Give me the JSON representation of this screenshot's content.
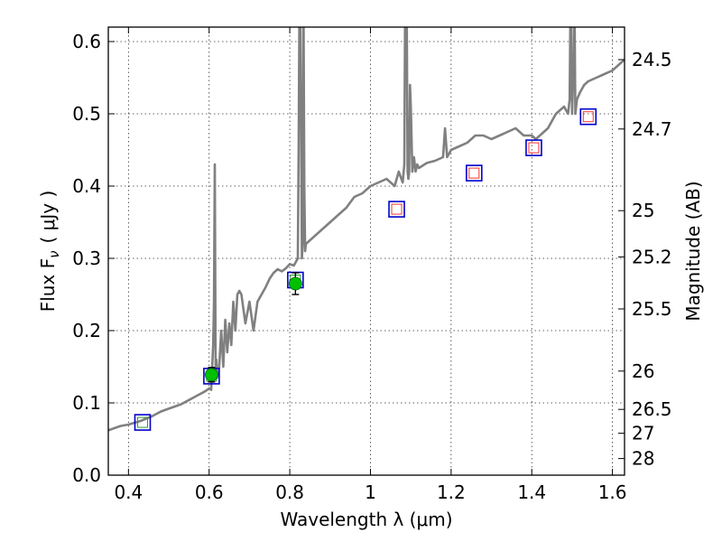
{
  "chart_data": {
    "type": "line",
    "xlabel": "Wavelength  λ (μm)",
    "ylabel": "Flux  F",
    "ylabel_sub": "ν",
    "ylabel_unit": "( μJy )",
    "y2label": "Magnitude (AB)",
    "xlim": [
      0.35,
      1.63
    ],
    "ylim": [
      0.0,
      0.62
    ],
    "grid": true,
    "x_ticks": [
      0.4,
      0.6,
      0.8,
      1.0,
      1.2,
      1.4,
      1.6
    ],
    "x_tick_labels": [
      "0.4",
      "0.6",
      "0.8",
      "1",
      "1.2",
      "1.4",
      "1.6"
    ],
    "y_ticks": [
      0.0,
      0.1,
      0.2,
      0.3,
      0.4,
      0.5,
      0.6
    ],
    "y_tick_labels": [
      "0.0",
      "0.1",
      "0.2",
      "0.3",
      "0.4",
      "0.5",
      "0.6"
    ],
    "mag_ticks": [
      24.5,
      24.7,
      25,
      25.2,
      25.5,
      26,
      26.5,
      27,
      28
    ],
    "mag_tick_labels": [
      "24.5",
      "24.7",
      "25",
      "25.2",
      "25.5",
      "26",
      "26.5",
      "27",
      "28"
    ],
    "mag_tick_flux": [
      0.575,
      0.479,
      0.366,
      0.302,
      0.23,
      0.144,
      0.091,
      0.058,
      0.023
    ],
    "spectrum": {
      "color": "#808080",
      "x": [
        0.35,
        0.38,
        0.4,
        0.43,
        0.46,
        0.48,
        0.5,
        0.53,
        0.55,
        0.57,
        0.59,
        0.6,
        0.605,
        0.61,
        0.612,
        0.614,
        0.616,
        0.618,
        0.62,
        0.625,
        0.63,
        0.635,
        0.64,
        0.645,
        0.65,
        0.655,
        0.66,
        0.665,
        0.67,
        0.675,
        0.68,
        0.69,
        0.7,
        0.71,
        0.72,
        0.73,
        0.74,
        0.75,
        0.76,
        0.77,
        0.78,
        0.79,
        0.8,
        0.81,
        0.82,
        0.822,
        0.824,
        0.826,
        0.828,
        0.83,
        0.832,
        0.834,
        0.836,
        0.838,
        0.84,
        0.86,
        0.88,
        0.9,
        0.92,
        0.94,
        0.96,
        0.98,
        1.0,
        1.02,
        1.04,
        1.06,
        1.07,
        1.08,
        1.084,
        1.086,
        1.088,
        1.09,
        1.092,
        1.094,
        1.096,
        1.098,
        1.1,
        1.104,
        1.108,
        1.112,
        1.116,
        1.12,
        1.14,
        1.16,
        1.18,
        1.185,
        1.19,
        1.2,
        1.22,
        1.24,
        1.26,
        1.28,
        1.3,
        1.32,
        1.34,
        1.36,
        1.38,
        1.4,
        1.41,
        1.42,
        1.44,
        1.46,
        1.48,
        1.49,
        1.494,
        1.496,
        1.498,
        1.5,
        1.502,
        1.504,
        1.506,
        1.508,
        1.512,
        1.52,
        1.53,
        1.54,
        1.56,
        1.58,
        1.6,
        1.62,
        1.63
      ],
      "y": [
        0.062,
        0.068,
        0.07,
        0.075,
        0.082,
        0.088,
        0.092,
        0.098,
        0.104,
        0.11,
        0.116,
        0.12,
        0.118,
        0.18,
        0.24,
        0.43,
        0.15,
        0.16,
        0.135,
        0.15,
        0.2,
        0.15,
        0.215,
        0.17,
        0.21,
        0.18,
        0.24,
        0.2,
        0.25,
        0.255,
        0.25,
        0.21,
        0.24,
        0.2,
        0.24,
        0.25,
        0.26,
        0.272,
        0.28,
        0.285,
        0.282,
        0.286,
        0.292,
        0.29,
        0.3,
        0.45,
        0.65,
        0.65,
        0.5,
        0.3,
        0.32,
        0.65,
        0.4,
        0.31,
        0.32,
        0.33,
        0.34,
        0.35,
        0.36,
        0.37,
        0.385,
        0.39,
        0.4,
        0.405,
        0.41,
        0.4,
        0.42,
        0.405,
        0.43,
        0.65,
        0.65,
        0.64,
        0.42,
        0.41,
        0.42,
        0.54,
        0.51,
        0.42,
        0.44,
        0.42,
        0.43,
        0.425,
        0.432,
        0.435,
        0.44,
        0.48,
        0.44,
        0.45,
        0.455,
        0.46,
        0.47,
        0.47,
        0.465,
        0.47,
        0.475,
        0.48,
        0.47,
        0.47,
        0.465,
        0.47,
        0.48,
        0.5,
        0.51,
        0.5,
        0.52,
        0.65,
        0.65,
        0.5,
        0.54,
        0.54,
        0.65,
        0.5,
        0.52,
        0.53,
        0.54,
        0.545,
        0.55,
        0.555,
        0.56,
        0.57,
        0.575
      ]
    },
    "photometry": [
      {
        "x": 0.435,
        "y": 0.073,
        "type": "model",
        "edge": "#0000cc",
        "inner": "#2ca02c"
      },
      {
        "x": 0.606,
        "y": 0.137,
        "type": "model",
        "edge": "#0000cc",
        "inner": "#2ca02c"
      },
      {
        "x": 0.814,
        "y": 0.27,
        "type": "model",
        "edge": "#0000cc",
        "inner": "#2ca02c"
      },
      {
        "x": 1.065,
        "y": 0.368,
        "type": "model",
        "edge": "#0000cc",
        "inner": "#ff3333"
      },
      {
        "x": 1.257,
        "y": 0.418,
        "type": "model",
        "edge": "#0000cc",
        "inner": "#ff3333"
      },
      {
        "x": 1.405,
        "y": 0.453,
        "type": "model",
        "edge": "#0000cc",
        "inner": "#ff3333"
      },
      {
        "x": 1.54,
        "y": 0.496,
        "type": "model",
        "edge": "#0000cc",
        "inner": "#ff3333"
      }
    ],
    "observed": [
      {
        "x": 0.606,
        "y": 0.139,
        "err": 0.01,
        "color": "#00c000"
      },
      {
        "x": 0.814,
        "y": 0.265,
        "err": 0.015,
        "color": "#00c000"
      }
    ]
  }
}
